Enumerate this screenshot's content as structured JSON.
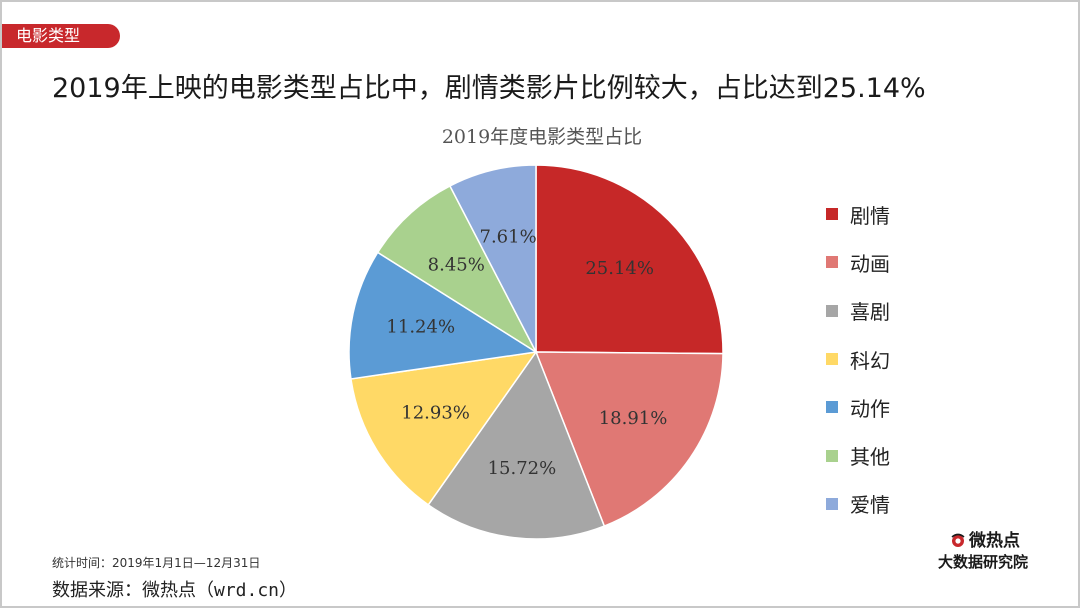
{
  "section_tag": "电影类型",
  "headline": "2019年上映的电影类型占比中，剧情类影片比例较大，占比达到25.14%",
  "footer": {
    "time_range": "统计时间：2019年1月1日—12月31日",
    "source": "数据来源：微热点（wrd.cn）"
  },
  "brand": {
    "logo_text": "微热点",
    "subtitle": "大数据研究院",
    "icon": "weiredian-eye-logo"
  },
  "chart_data": {
    "type": "pie",
    "title": "2019年度电影类型占比",
    "legend_position": "right",
    "categories": [
      "剧情",
      "动画",
      "喜剧",
      "科幻",
      "动作",
      "其他",
      "爱情"
    ],
    "values": [
      25.14,
      18.91,
      15.72,
      12.93,
      11.24,
      8.45,
      7.61
    ],
    "labels": [
      "25.14%",
      "18.91%",
      "15.72%",
      "12.93%",
      "11.24%",
      "8.45%",
      "7.61%"
    ],
    "colors": [
      "#c62828",
      "#e07874",
      "#a6a6a6",
      "#ffd966",
      "#5b9bd5",
      "#a9d18e",
      "#8eaadb"
    ]
  }
}
